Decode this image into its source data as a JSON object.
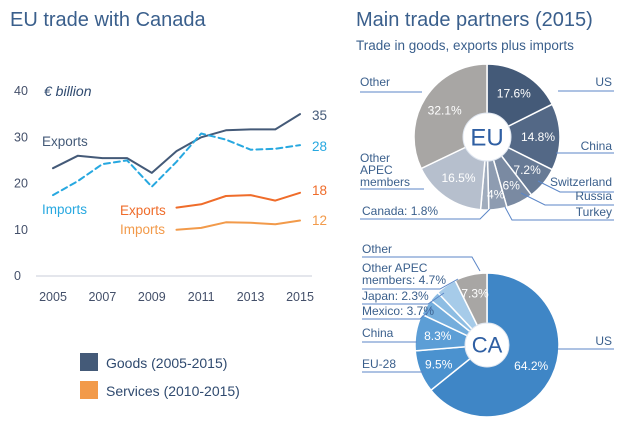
{
  "colors": {
    "goods": "#445a78",
    "goods_imports": "#27a8e0",
    "services": "#ef6c2a",
    "services_imports": "#f29a4a",
    "title": "#3a5f8c",
    "leader": "#5b86c7"
  },
  "left_title": "EU trade with Canada",
  "right_title": "Main trade partners (2015)",
  "right_subtitle": "Trade in goods, exports plus imports",
  "chart_data": [
    {
      "type": "line",
      "title": "EU trade with Canada",
      "unit_label": "€ billion",
      "ylim": [
        0,
        40
      ],
      "y_ticks": [
        "0",
        "10",
        "20",
        "30",
        "40"
      ],
      "x_ticks": [
        "2005",
        "2007",
        "2009",
        "2011",
        "2013",
        "2015"
      ],
      "xlim": [
        2005,
        2015
      ],
      "grid": false,
      "series": [
        {
          "name": "Exports",
          "group": "Goods",
          "style": "solid",
          "color": "#445a78",
          "x": [
            2005,
            2006,
            2007,
            2008,
            2009,
            2010,
            2011,
            2012,
            2013,
            2014,
            2015
          ],
          "y": [
            23.3,
            26.0,
            25.5,
            25.5,
            22.3,
            27.0,
            30.0,
            31.5,
            31.7,
            31.7,
            35.0
          ],
          "end_label": "35"
        },
        {
          "name": "Imports",
          "group": "Goods",
          "style": "dashed",
          "color": "#27a8e0",
          "x": [
            2005,
            2006,
            2007,
            2008,
            2009,
            2010,
            2011,
            2012,
            2013,
            2014,
            2015
          ],
          "y": [
            17.5,
            20.5,
            24.2,
            25.0,
            19.3,
            24.7,
            30.8,
            29.5,
            27.3,
            27.5,
            28.3
          ],
          "end_label": "28"
        },
        {
          "name": "Exports",
          "group": "Services",
          "style": "solid",
          "color": "#ef6c2a",
          "x": [
            2010,
            2011,
            2012,
            2013,
            2014,
            2015
          ],
          "y": [
            14.8,
            15.5,
            17.3,
            17.5,
            16.3,
            18.0
          ],
          "end_label": "18"
        },
        {
          "name": "Imports",
          "group": "Services",
          "style": "solid",
          "color": "#f29a4a",
          "x": [
            2010,
            2011,
            2012,
            2013,
            2014,
            2015
          ],
          "y": [
            10.0,
            10.4,
            11.6,
            11.5,
            11.2,
            12.0
          ],
          "end_label": "12"
        }
      ],
      "legend": [
        {
          "label": "Goods (2005-2015)",
          "color": "#445a78"
        },
        {
          "label": "Services (2010-2015)",
          "color": "#f29a4a"
        }
      ]
    },
    {
      "type": "pie",
      "center_label": "EU",
      "slices": [
        {
          "label": "US",
          "value": 17.6,
          "value_label": "17.6%",
          "color": "#445a78"
        },
        {
          "label": "China",
          "value": 14.8,
          "value_label": "14.8%",
          "color": "#536886"
        },
        {
          "label": "Switzerland",
          "value": 7.2,
          "value_label": "7.2%",
          "color": "#677a95"
        },
        {
          "label": "Russia",
          "value": 6.0,
          "value_label": "6%",
          "color": "#7a8aa2"
        },
        {
          "label": "Turkey",
          "value": 4.0,
          "value_label": "4%",
          "color": "#8e9cb1"
        },
        {
          "label": "Canada: 1.8%",
          "value": 1.8,
          "value_label": "",
          "color": "#a0acbd"
        },
        {
          "label": "Other APEC members",
          "value": 16.5,
          "value_label": "16.5%",
          "color": "#b6bfcd"
        },
        {
          "label": "Other",
          "value": 32.1,
          "value_label": "32.1%",
          "color": "#a8a6a4"
        }
      ]
    },
    {
      "type": "pie",
      "center_label": "CA",
      "slices": [
        {
          "label": "US",
          "value": 64.2,
          "value_label": "64.2%",
          "color": "#3f86c6"
        },
        {
          "label": "EU-28",
          "value": 9.5,
          "value_label": "9.5%",
          "color": "#4b92cf"
        },
        {
          "label": "China",
          "value": 8.3,
          "value_label": "8.3%",
          "color": "#5c9ed6"
        },
        {
          "label": "Mexico: 3.7%",
          "value": 3.7,
          "value_label": "",
          "color": "#74addc"
        },
        {
          "label": "Japan: 2.3%",
          "value": 2.3,
          "value_label": "",
          "color": "#8dbde3"
        },
        {
          "label": "Other APEC members: 4.7%",
          "value": 4.7,
          "value_label": "",
          "color": "#a6cbe9"
        },
        {
          "label": "Other",
          "value": 7.3,
          "value_label": "7.3%",
          "color": "#a8a6a4"
        }
      ]
    }
  ]
}
